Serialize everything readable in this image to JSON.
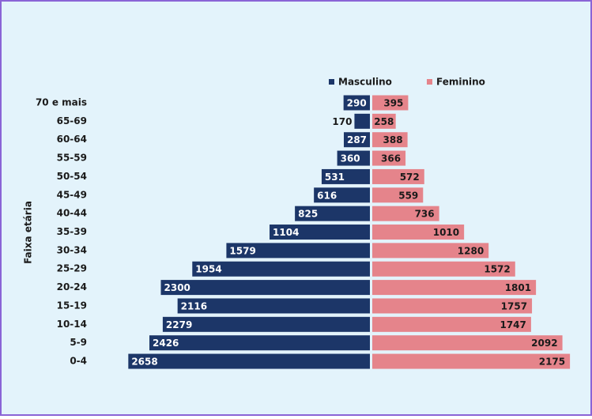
{
  "chart_data": {
    "type": "pyramid",
    "y_label": "Faixa etária",
    "categories": [
      "70 e mais",
      "65-69",
      "60-64",
      "55-59",
      "50-54",
      "45-49",
      "40-44",
      "35-39",
      "30-34",
      "25-29",
      "20-24",
      "15-19",
      "10-14",
      "5-9",
      "0-4"
    ],
    "series": [
      {
        "name": "Masculino",
        "color": "#1c3668",
        "values": [
          290,
          170,
          287,
          360,
          531,
          616,
          825,
          1104,
          1579,
          1954,
          2300,
          2116,
          2279,
          2426,
          2658
        ]
      },
      {
        "name": "Feminino",
        "color": "#e5848b",
        "values": [
          395,
          258,
          388,
          366,
          572,
          559,
          736,
          1010,
          1280,
          1572,
          1801,
          1757,
          1747,
          2092,
          2175
        ]
      }
    ],
    "xlim": [
      -2800,
      2800
    ]
  }
}
